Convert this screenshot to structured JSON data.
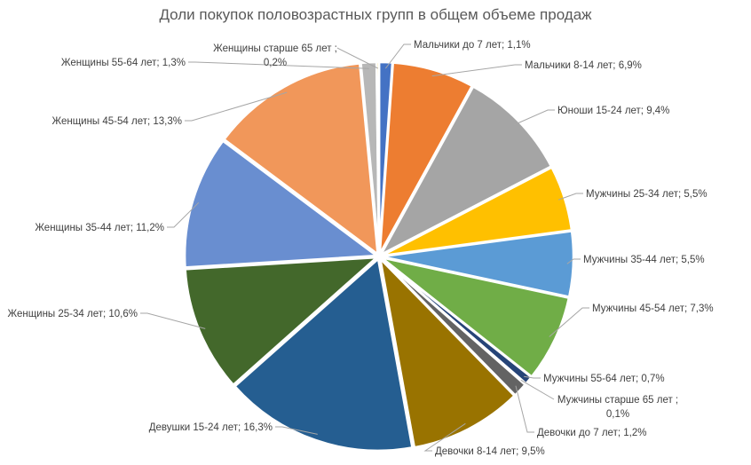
{
  "chart_data": {
    "type": "pie",
    "title": "Доли покупок половозрастных групп в общем объеме продаж",
    "unit": "%",
    "categories": [
      "Мальчики до 7 лет",
      "Мальчики 8-14 лет",
      "Юноши 15-24 лет",
      "Мужчины 25-34 лет",
      "Мужчины 35-44 лет",
      "Мужчины 45-54 лет",
      "Мужчины 55-64 лет",
      "Мужчины старше 65 лет",
      "Девочки до 7 лет",
      "Девочки 8-14 лет",
      "Девушки 15-24 лет",
      "Женщины 25-34 лет",
      "Женщины 35-44 лет",
      "Женщины 45-54 лет",
      "Женщины 55-64 лет",
      "Женщины старше 65 лет"
    ],
    "values": [
      1.1,
      6.9,
      9.4,
      5.5,
      5.5,
      7.3,
      0.7,
      0.1,
      1.2,
      9.5,
      16.3,
      10.6,
      11.2,
      13.3,
      1.3,
      0.2
    ],
    "colors": [
      "#4472C4",
      "#ED7D31",
      "#A5A5A5",
      "#FFC000",
      "#5B9BD5",
      "#70AD47",
      "#264478",
      "#9E480E",
      "#636363",
      "#997300",
      "#255E91",
      "#43682B",
      "#698ED0",
      "#F1975A",
      "#B7B7B7",
      "#FFCD33"
    ],
    "data_labels": "category; value%",
    "legend": "none"
  }
}
